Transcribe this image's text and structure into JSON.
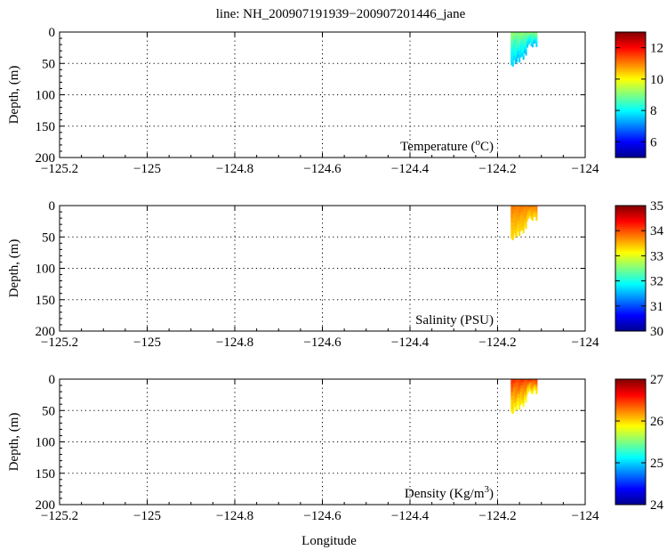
{
  "figure": {
    "title": "line: NH_200907191939−200907201446_jane",
    "xlabel": "Longitude"
  },
  "colormap": [
    "#00008f",
    "#0000ff",
    "#0080ff",
    "#00ffff",
    "#80ff80",
    "#ffff00",
    "#ff8000",
    "#ff0000",
    "#800000"
  ],
  "chart_data": [
    {
      "type": "heatmap",
      "panel": "temperature",
      "variable_label": "Temperature (",
      "variable_unit_base": "C)",
      "variable_unit_sup": "o",
      "ylabel": "Depth, (m)",
      "xlim": [
        -125.2,
        -124.0
      ],
      "ylim": [
        0,
        200
      ],
      "y_inverted": true,
      "xticks": [
        -125.2,
        -125.0,
        -124.8,
        -124.6,
        -124.4,
        -124.2,
        -124.0
      ],
      "xtick_labels": [
        "−125.2",
        "−125",
        "−124.8",
        "−124.6",
        "−124.4",
        "−124.2",
        "−124"
      ],
      "yticks": [
        0,
        50,
        100,
        150,
        200
      ],
      "ytick_labels": [
        "0",
        "50",
        "100",
        "150",
        "200"
      ],
      "grid": true,
      "colorbar": {
        "min": 5,
        "max": 13,
        "ticks": [
          6,
          8,
          10,
          12
        ],
        "tick_labels": [
          "6",
          "8",
          "10",
          "12"
        ]
      },
      "data_region": {
        "lon": [
          -124.17,
          -124.11
        ],
        "depth_range": [
          0,
          52
        ],
        "values": [
          7.6,
          9.2
        ]
      }
    },
    {
      "type": "heatmap",
      "panel": "salinity",
      "variable_label": "Salinity (PSU)",
      "variable_unit_base": "",
      "variable_unit_sup": "",
      "ylabel": "Depth, (m)",
      "xlim": [
        -125.2,
        -124.0
      ],
      "ylim": [
        0,
        200
      ],
      "y_inverted": true,
      "xticks": [
        -125.2,
        -125.0,
        -124.8,
        -124.6,
        -124.4,
        -124.2,
        -124.0
      ],
      "xtick_labels": [
        "−125.2",
        "−125",
        "−124.8",
        "−124.6",
        "−124.4",
        "−124.2",
        "−124"
      ],
      "yticks": [
        0,
        50,
        100,
        150,
        200
      ],
      "ytick_labels": [
        "0",
        "50",
        "100",
        "150",
        "200"
      ],
      "grid": true,
      "colorbar": {
        "min": 30,
        "max": 35,
        "ticks": [
          30,
          31,
          32,
          33,
          34,
          35
        ],
        "tick_labels": [
          "30",
          "31",
          "32",
          "33",
          "34",
          "35"
        ]
      },
      "data_region": {
        "lon": [
          -124.17,
          -124.11
        ],
        "depth_range": [
          0,
          52
        ],
        "values": [
          33.3,
          33.8
        ]
      }
    },
    {
      "type": "heatmap",
      "panel": "density",
      "variable_label": "Density (Kg/m",
      "variable_unit_base": ")",
      "variable_unit_sup": "3",
      "ylabel": "Depth, (m)",
      "xlim": [
        -125.2,
        -124.0
      ],
      "ylim": [
        0,
        200
      ],
      "y_inverted": true,
      "xticks": [
        -125.2,
        -125.0,
        -124.8,
        -124.6,
        -124.4,
        -124.2,
        -124.0
      ],
      "xtick_labels": [
        "−125.2",
        "−125",
        "−124.8",
        "−124.6",
        "−124.4",
        "−124.2",
        "−124"
      ],
      "yticks": [
        0,
        50,
        100,
        150,
        200
      ],
      "ytick_labels": [
        "0",
        "50",
        "100",
        "150",
        "200"
      ],
      "grid": true,
      "colorbar": {
        "min": 24,
        "max": 27,
        "ticks": [
          24,
          25,
          26,
          27
        ],
        "tick_labels": [
          "24",
          "25",
          "26",
          "27"
        ]
      },
      "data_region": {
        "lon": [
          -124.17,
          -124.11
        ],
        "depth_range": [
          0,
          52
        ],
        "values": [
          25.9,
          26.5
        ]
      }
    }
  ]
}
